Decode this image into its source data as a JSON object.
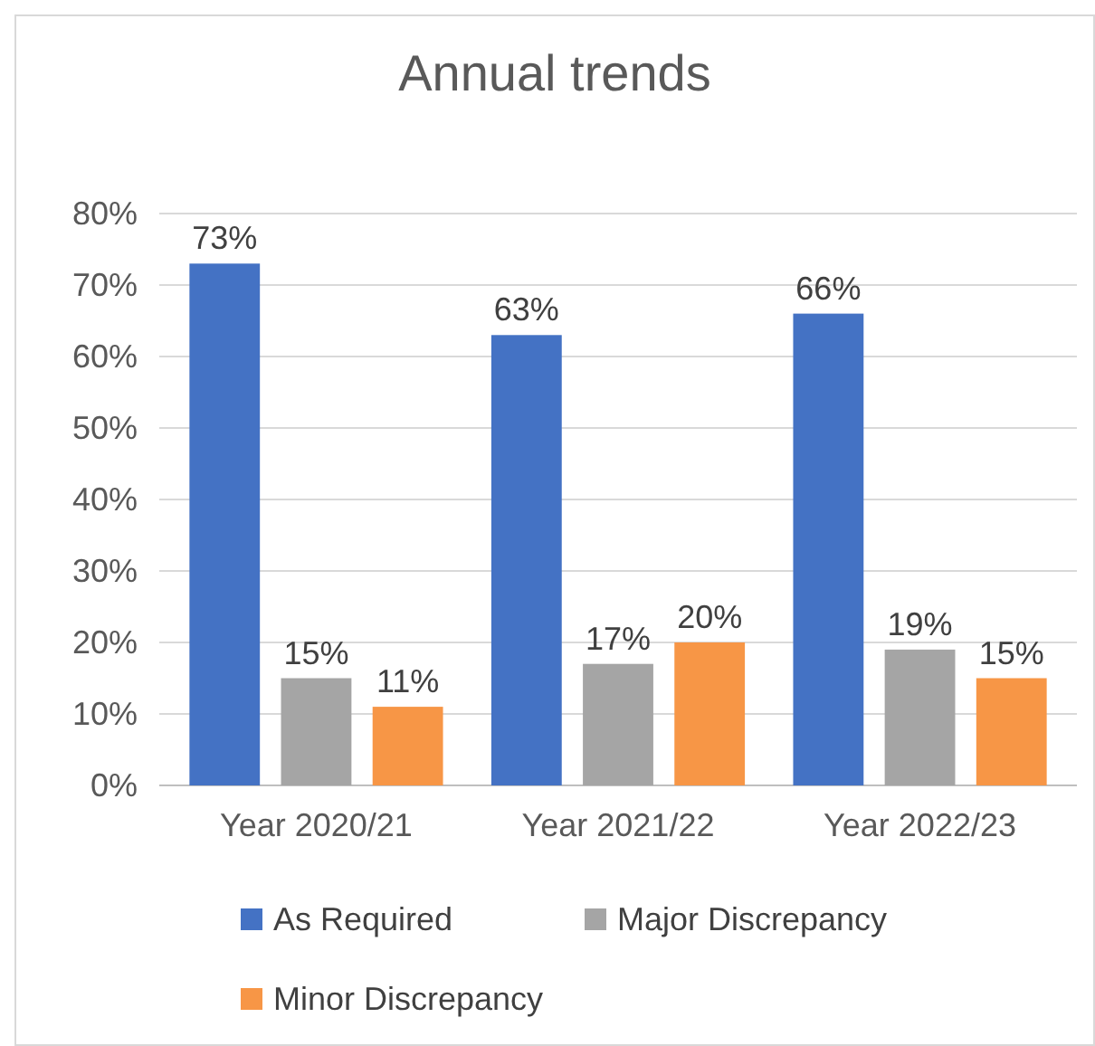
{
  "chart_data": {
    "type": "bar",
    "title": "Annual trends",
    "categories": [
      "Year 2020/21",
      "Year 2021/22",
      "Year 2022/23"
    ],
    "series": [
      {
        "name": "As Required",
        "color": "#4472c4",
        "values": [
          73,
          63,
          66
        ],
        "value_labels": [
          "73%",
          "63%",
          "66%"
        ]
      },
      {
        "name": "Major Discrepancy",
        "color": "#a5a5a5",
        "values": [
          15,
          17,
          19
        ],
        "value_labels": [
          "15%",
          "17%",
          "19%"
        ]
      },
      {
        "name": "Minor Discrepancy",
        "color": "#f79646",
        "values": [
          11,
          20,
          15
        ],
        "value_labels": [
          "11%",
          "20%",
          "15%"
        ]
      }
    ],
    "ylim": [
      0,
      80
    ],
    "yticks": [
      {
        "value": 0,
        "label": "0%"
      },
      {
        "value": 10,
        "label": "10%"
      },
      {
        "value": 20,
        "label": "20%"
      },
      {
        "value": 30,
        "label": "30%"
      },
      {
        "value": 40,
        "label": "40%"
      },
      {
        "value": 50,
        "label": "50%"
      },
      {
        "value": 60,
        "label": "60%"
      },
      {
        "value": 70,
        "label": "70%"
      },
      {
        "value": 80,
        "label": "80%"
      }
    ],
    "grid": "y",
    "legend": "bottom"
  }
}
